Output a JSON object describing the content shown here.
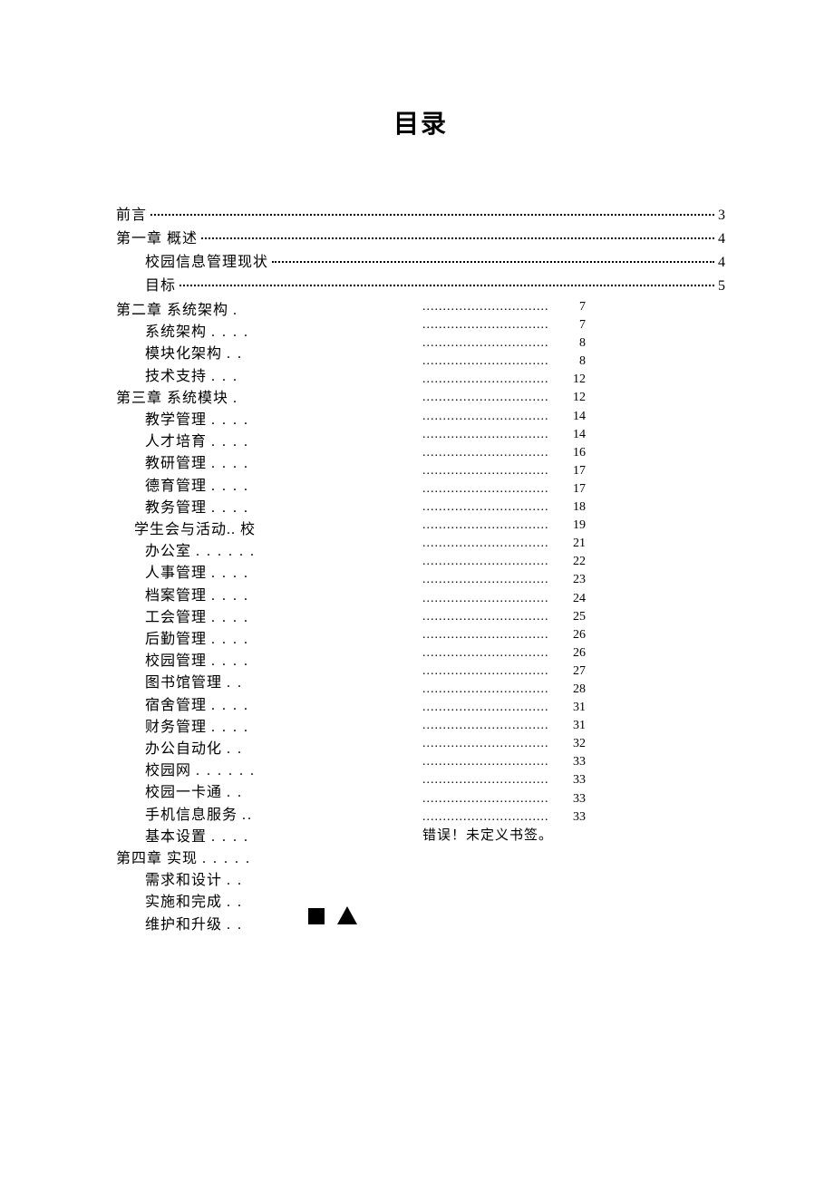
{
  "title": "目录",
  "toc_top": [
    {
      "label": "前言",
      "indent": 0,
      "page": "3"
    },
    {
      "label": "第一章  概述",
      "indent": 0,
      "page": "4"
    },
    {
      "label": "校园信息管理现状",
      "indent": 1,
      "page": "4"
    },
    {
      "label": "目标",
      "indent": 1,
      "page": "5"
    }
  ],
  "left_entries": [
    {
      "label": "第二章  系统架构",
      "dots": ".",
      "lvl": 0
    },
    {
      "label": "系统架构",
      "dots": ". . . .",
      "lvl": 1
    },
    {
      "label": "模块化架构",
      "dots": ". .",
      "lvl": 1
    },
    {
      "label": "技术支持",
      "dots": ". . .",
      "lvl": 1
    },
    {
      "label": "第三章  系统模块",
      "dots": ".",
      "lvl": 0
    },
    {
      "label": "教学管理",
      "dots": ". . . .",
      "lvl": 1
    },
    {
      "label": "人才培育",
      "dots": ". . . .",
      "lvl": 1
    },
    {
      "label": "教研管理",
      "dots": ". . . .",
      "lvl": 1
    },
    {
      "label": "德育管理",
      "dots": ". . . .",
      "lvl": 1
    },
    {
      "label": "教务管理",
      "dots": ". . . .",
      "lvl": 1
    },
    {
      "label": "学生会与活动.. 校",
      "dots": "",
      "lvl": 2
    },
    {
      "label": "办公室",
      "dots": ". . . . . .",
      "lvl": 1
    },
    {
      "label": "人事管理",
      "dots": ". . . .",
      "lvl": 1
    },
    {
      "label": "档案管理",
      "dots": ". . . .",
      "lvl": 1
    },
    {
      "label": "工会管理",
      "dots": ". . . .",
      "lvl": 1
    },
    {
      "label": "后勤管理",
      "dots": ". . . .",
      "lvl": 1
    },
    {
      "label": "校园管理",
      "dots": ". . . .",
      "lvl": 1
    },
    {
      "label": "图书馆管理",
      "dots": ". .",
      "lvl": 1
    },
    {
      "label": "宿舍管理",
      "dots": ". . . .",
      "lvl": 1
    },
    {
      "label": "财务管理",
      "dots": ". . . .",
      "lvl": 1
    },
    {
      "label": "办公自动化",
      "dots": ". .",
      "lvl": 1
    },
    {
      "label": "校园网",
      "dots": ". . . . . .",
      "lvl": 1
    },
    {
      "label": "校园一卡通",
      "dots": ". .",
      "lvl": 1
    },
    {
      "label": "手机信息服务",
      "dots": "..",
      "lvl": 1
    },
    {
      "label": "基本设置",
      "dots": ". . . .",
      "lvl": 1
    },
    {
      "label": "第四章  实现",
      "dots": ". . . . .",
      "lvl": 0
    },
    {
      "label": "需求和设计",
      "dots": ". .",
      "lvl": 1
    },
    {
      "label": "实施和完成",
      "dots": ". .",
      "lvl": 1
    },
    {
      "label": "维护和升级",
      "dots": ". .",
      "lvl": 1
    }
  ],
  "right_pages": [
    "7",
    "7",
    "8",
    "8",
    "12",
    "12",
    "14",
    "14",
    "16",
    "17",
    "17",
    "18",
    "19",
    "21",
    "22",
    "23",
    "24",
    "25",
    "26",
    "26",
    "27",
    "28",
    "31",
    "31",
    "32",
    "33",
    "33",
    "33",
    "33"
  ],
  "right_error": "错误！未定义书签。",
  "leader_pattern": "..............................."
}
